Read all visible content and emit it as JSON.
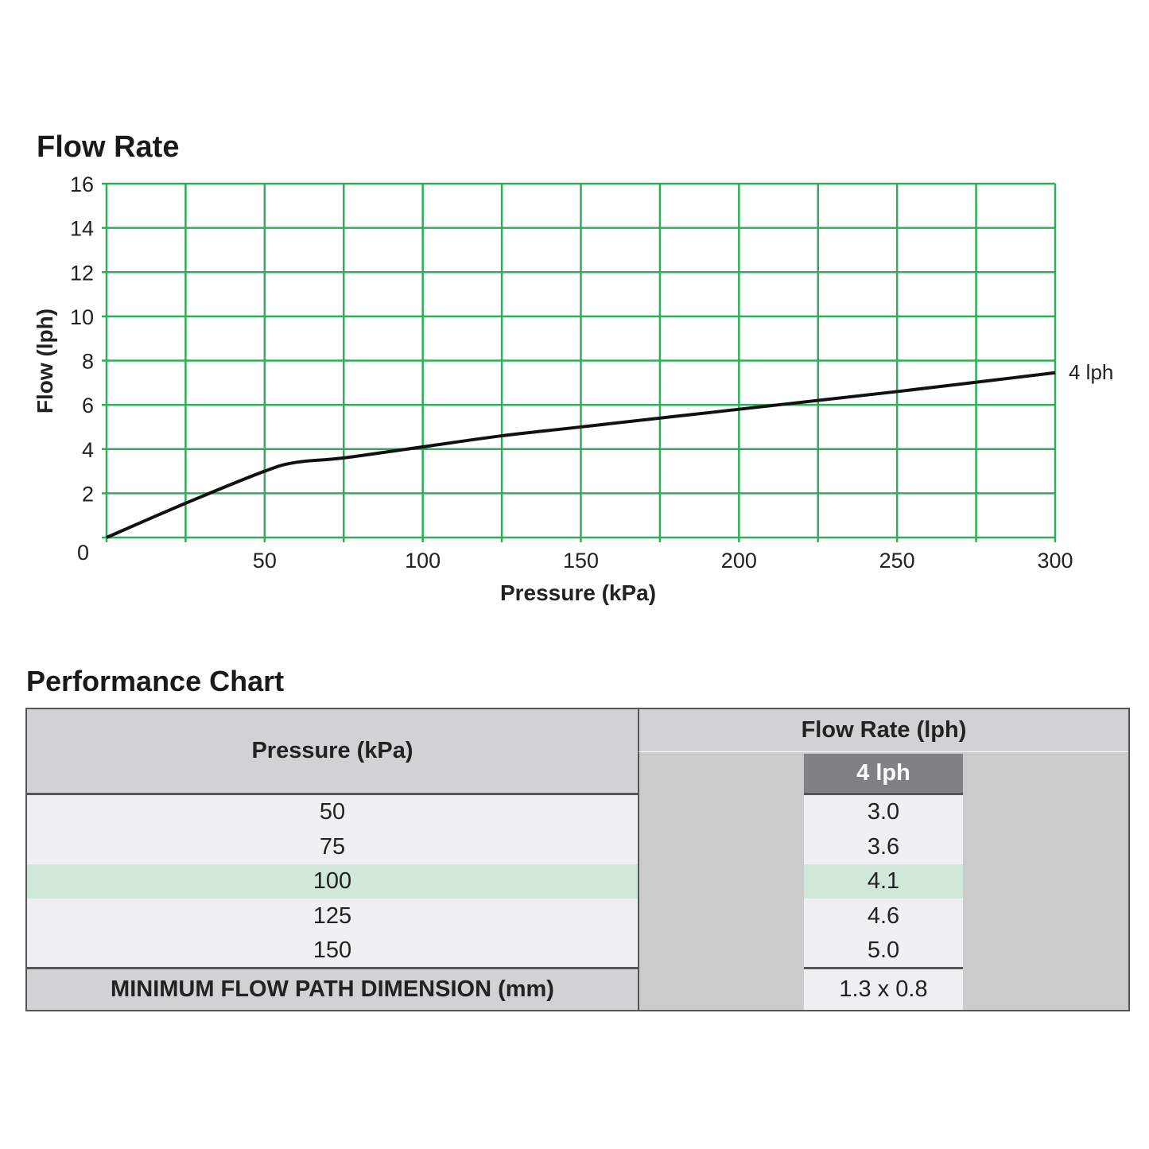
{
  "chart_data": {
    "type": "line",
    "title": "Flow Rate",
    "xlabel": "Pressure (kPa)",
    "ylabel": "Flow (lph)",
    "xlim": [
      0,
      300
    ],
    "ylim": [
      0,
      16
    ],
    "x_ticks": [
      50,
      100,
      150,
      200,
      250,
      300
    ],
    "x_tick_labels": [
      "50",
      "100",
      "150",
      "200",
      "250",
      "300"
    ],
    "x_grid_step": 25,
    "y_ticks": [
      0,
      2,
      4,
      6,
      8,
      10,
      12,
      14,
      16
    ],
    "y_tick_labels": [
      "0",
      "2",
      "4",
      "6",
      "8",
      "10",
      "12",
      "14",
      "16"
    ],
    "grid": true,
    "grid_color": "#2fae5a",
    "series": [
      {
        "name": "4 lph",
        "color": "#111111",
        "x": [
          0,
          25,
          50,
          60,
          75,
          100,
          125,
          150,
          200,
          250,
          300
        ],
        "y": [
          0,
          1.55,
          3.0,
          3.4,
          3.6,
          4.1,
          4.6,
          5.0,
          5.8,
          6.6,
          7.45
        ]
      }
    ]
  },
  "table": {
    "title": "Performance Chart",
    "pressure_header": "Pressure (kPa)",
    "flow_header": "Flow Rate (lph)",
    "model_header": "4 lph",
    "rows": [
      {
        "pressure": "50",
        "flow": "3.0"
      },
      {
        "pressure": "75",
        "flow": "3.6"
      },
      {
        "pressure": "100",
        "flow": "4.1",
        "highlight": true
      },
      {
        "pressure": "125",
        "flow": "4.6"
      },
      {
        "pressure": "150",
        "flow": "5.0"
      }
    ],
    "footer_label": "MINIMUM FLOW PATH DIMENSION (mm)",
    "footer_value": "1.3 x 0.8",
    "colors": {
      "header_bg": "#d1d2d3",
      "row_bg": "#f0f0f2",
      "highlight_bg": "#d0e8d8",
      "model_header_bg": "#808184"
    }
  }
}
